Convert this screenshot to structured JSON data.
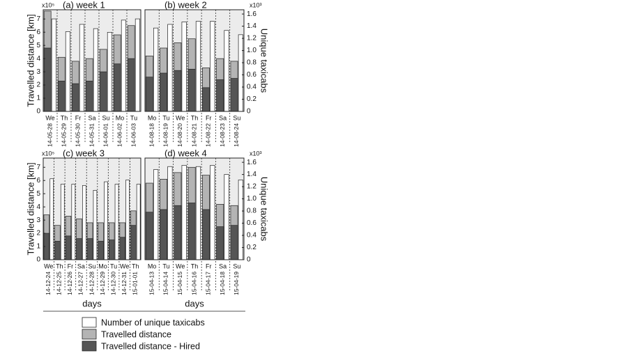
{
  "legend": {
    "entries": [
      {
        "name": "Number of unique taxicabs",
        "color": "#ffffff"
      },
      {
        "name": "Travelled distance",
        "color": "#b4b4b4"
      },
      {
        "name": "Travelled distance - Hired",
        "color": "#555555"
      }
    ]
  },
  "chart_data": [
    {
      "type": "bar",
      "title": "(a) week 1",
      "ylabel": "Travelled distance [km]",
      "ymultiplier": "x10⁵",
      "categories": [
        "We",
        "Th",
        "Fr",
        "Sa",
        "Su",
        "Mo",
        "Tu"
      ],
      "dates": [
        "14-05-28",
        "14-05-29",
        "14-05-30",
        "14-05-31",
        "14-06-01",
        "14-06-02",
        "14-06-03"
      ],
      "ylim": [
        0,
        7.7
      ],
      "y2lim": [
        0,
        1.67
      ],
      "yticks": [
        0,
        1,
        2,
        3,
        4,
        5,
        6,
        7
      ],
      "series": [
        {
          "axis": "y2",
          "values": [
            1.52,
            1.31,
            1.43,
            1.36,
            1.3,
            1.5,
            1.52
          ]
        },
        {
          "values": [
            7.6,
            4.1,
            3.8,
            4.0,
            4.7,
            5.8,
            6.5
          ]
        },
        {
          "values": [
            4.8,
            2.3,
            2.1,
            2.3,
            3.0,
            3.6,
            4.0
          ]
        }
      ]
    },
    {
      "type": "bar",
      "title": "(b) week 2",
      "y2label": "Unique taxicabs",
      "y2multiplier": "x10³",
      "categories": [
        "Mo",
        "Tu",
        "We",
        "Th",
        "Fr",
        "Sa",
        "Su"
      ],
      "dates": [
        "14-08-18",
        "14-08-19",
        "14-08-20",
        "14-08-21",
        "14-08-22",
        "14-08-23",
        "14-08-24"
      ],
      "ylim": [
        0,
        7.7
      ],
      "y2lim": [
        0,
        1.67
      ],
      "y2ticks": [
        0,
        0.2,
        0.4,
        0.6,
        0.8,
        {
          "value": 1,
          "label": "1.0"
        },
        1.2,
        1.4,
        1.6
      ],
      "series": [
        {
          "axis": "y2",
          "values": [
            1.37,
            1.43,
            1.47,
            1.48,
            1.48,
            1.33,
            1.26
          ]
        },
        {
          "values": [
            4.2,
            4.8,
            5.2,
            5.5,
            3.3,
            4.0,
            3.8
          ]
        },
        {
          "values": [
            2.6,
            2.9,
            3.1,
            3.2,
            1.8,
            2.4,
            2.5
          ]
        }
      ]
    },
    {
      "type": "bar",
      "title": "(c) week 3",
      "ylabel": "Travelled distance [km]",
      "ymultiplier": "x10⁵",
      "xlabel": "days",
      "categories": [
        "We",
        "Th",
        "Fr",
        "Sa",
        "Su",
        "Mo",
        "Tu",
        "We",
        "Th"
      ],
      "dates": [
        "14-12-24",
        "14-12-25",
        "14-12-26",
        "14-12-27",
        "14-12-28",
        "14-12-29",
        "14-12-30",
        "14-12-31",
        "15-01-01"
      ],
      "ylim": [
        0,
        7.7
      ],
      "y2lim": [
        0,
        1.67
      ],
      "yticks": [
        0,
        1,
        2,
        3,
        4,
        5,
        6,
        7
      ],
      "series": [
        {
          "axis": "y2",
          "values": [
            1.33,
            1.24,
            1.24,
            1.22,
            1.14,
            1.28,
            1.24,
            1.31,
            1.24
          ]
        },
        {
          "values": [
            3.4,
            2.6,
            3.3,
            3.1,
            2.8,
            2.8,
            2.8,
            2.8,
            3.7
          ]
        },
        {
          "values": [
            2.0,
            1.4,
            1.8,
            1.6,
            1.6,
            1.4,
            1.5,
            1.7,
            2.6
          ]
        }
      ]
    },
    {
      "type": "bar",
      "title": "(d) week 4",
      "y2label": "Unique taxicabs",
      "y2multiplier": "x10³",
      "xlabel": "days",
      "categories": [
        "Mo",
        "Tu",
        "We",
        "Th",
        "Fr",
        "Sa",
        "Su"
      ],
      "dates": [
        "15-04-13",
        "15-04-14",
        "15-04-15",
        "15-04-16",
        "15-04-17",
        "15-04-18",
        "15-04-19"
      ],
      "ylim": [
        0,
        7.7
      ],
      "y2lim": [
        0,
        1.67
      ],
      "y2ticks": [
        0,
        0.2,
        0.4,
        0.6,
        0.8,
        {
          "value": 1,
          "label": "1.0"
        },
        1.2,
        1.4,
        1.6
      ],
      "series": [
        {
          "axis": "y2",
          "values": [
            1.48,
            1.53,
            1.55,
            1.53,
            1.55,
            1.4,
            1.31
          ]
        },
        {
          "values": [
            5.8,
            6.1,
            6.6,
            7.0,
            6.4,
            4.2,
            4.1
          ]
        },
        {
          "values": [
            3.6,
            3.8,
            4.1,
            4.3,
            3.8,
            2.5,
            2.6
          ]
        }
      ]
    }
  ]
}
